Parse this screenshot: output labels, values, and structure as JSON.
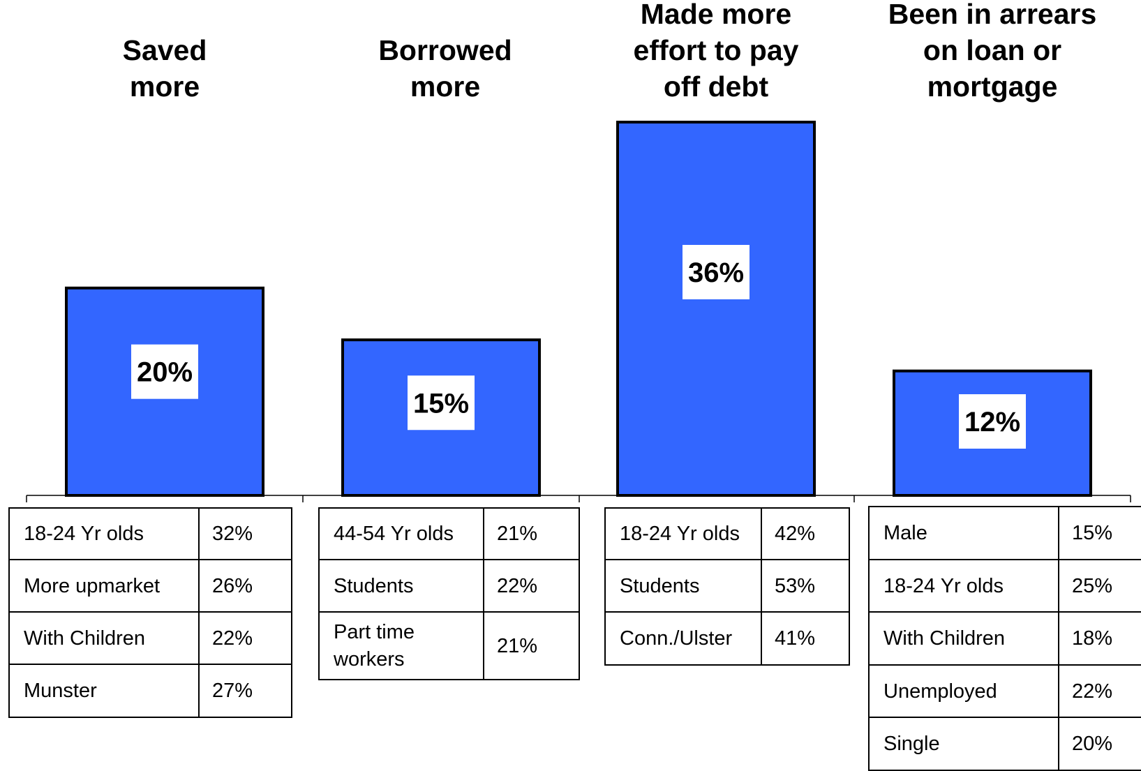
{
  "chart_data": {
    "type": "bar",
    "categories": [
      "Saved\nmore",
      "Borrowed\nmore",
      "Made more\neffort to pay\noff debt",
      "Been in arrears\non loan or\nmortgage"
    ],
    "values": [
      20,
      15,
      36,
      12
    ],
    "value_labels": [
      "20%",
      "15%",
      "36%",
      "12%"
    ],
    "ylim": [
      0,
      36
    ],
    "bar_color": "#3366FF",
    "label_bg": "#FFFFFF",
    "grid": false,
    "title": "",
    "xlabel": "",
    "ylabel": ""
  },
  "breakdowns": [
    {
      "rows": [
        {
          "label": "18-24 Yr olds",
          "value": "32%"
        },
        {
          "label": "More upmarket",
          "value": "26%"
        },
        {
          "label": "With Children",
          "value": "22%"
        },
        {
          "label": "Munster",
          "value": "27%"
        }
      ]
    },
    {
      "rows": [
        {
          "label": "44-54 Yr olds",
          "value": "21%"
        },
        {
          "label": "Students",
          "value": "22%"
        },
        {
          "label": "Part time workers",
          "value": "21%"
        }
      ]
    },
    {
      "rows": [
        {
          "label": "18-24 Yr olds",
          "value": "42%"
        },
        {
          "label": "Students",
          "value": "53%"
        },
        {
          "label": "Conn./Ulster",
          "value": "41%"
        }
      ]
    },
    {
      "rows": [
        {
          "label": "Male",
          "value": "15%"
        },
        {
          "label": "18-24 Yr olds",
          "value": "25%"
        },
        {
          "label": "With Children",
          "value": "18%"
        },
        {
          "label": "Unemployed",
          "value": "22%"
        },
        {
          "label": "Single",
          "value": "20%"
        }
      ]
    }
  ]
}
